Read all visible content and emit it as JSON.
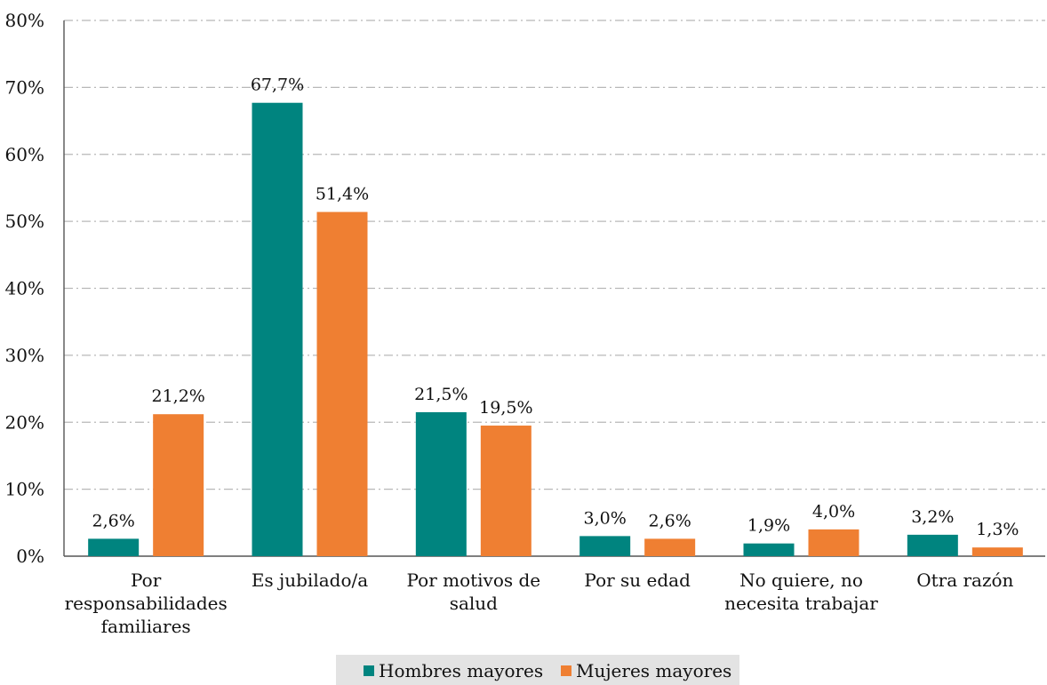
{
  "chart_data": {
    "type": "bar",
    "categories": [
      "Por responsabilidades familiares",
      "Es jubilado/a",
      "Por motivos de salud",
      "Por su edad",
      "No quiere, no necesita trabajar",
      "Otra razón"
    ],
    "category_lines": [
      [
        "Por",
        "responsabilidades",
        "familiares"
      ],
      [
        "Es jubilado/a"
      ],
      [
        "Por motivos de",
        "salud"
      ],
      [
        "Por su edad"
      ],
      [
        "No quiere, no",
        "necesita trabajar"
      ],
      [
        "Otra razón"
      ]
    ],
    "series": [
      {
        "name": "Hombres mayores",
        "color": "#00847f",
        "values": [
          2.6,
          67.7,
          21.5,
          3.0,
          1.9,
          3.2
        ],
        "labels": [
          "2,6%",
          "67,7%",
          "21,5%",
          "3,0%",
          "1,9%",
          "3,2%"
        ]
      },
      {
        "name": "Mujeres mayores",
        "color": "#ef7f32",
        "values": [
          21.2,
          51.4,
          19.5,
          2.6,
          4.0,
          1.3
        ],
        "labels": [
          "21,2%",
          "51,4%",
          "19,5%",
          "2,6%",
          "4,0%",
          "1,3%"
        ]
      }
    ],
    "ylim": [
      0,
      80
    ],
    "yticks": [
      0,
      10,
      20,
      30,
      40,
      50,
      60,
      70,
      80
    ],
    "ytick_labels": [
      "0%",
      "10%",
      "20%",
      "30%",
      "40%",
      "50%",
      "60%",
      "70%",
      "80%"
    ],
    "grid": true,
    "legend_position": "bottom-center",
    "title": "",
    "xlabel": "",
    "ylabel": ""
  }
}
